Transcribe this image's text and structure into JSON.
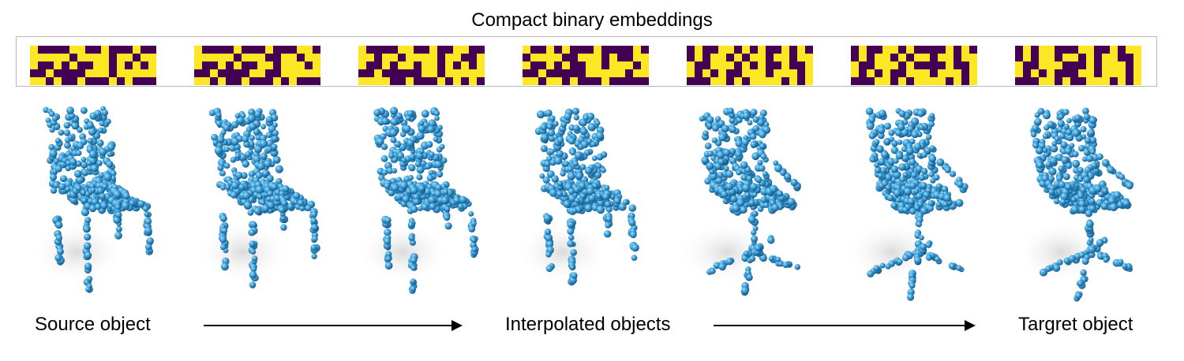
{
  "title": "Compact binary embeddings",
  "colors": {
    "bit_on": "#fde725",
    "bit_off": "#440154",
    "point_base": "#2a7fb8",
    "point_light": "#7fd0f5",
    "point_dark": "#0b3d66"
  },
  "embeddings": [
    {
      "rows": [
        "1000011001000100",
        "1111101111011011",
        "1001010011010101",
        "0010000111011111",
        "1101001000101000"
      ]
    },
    {
      "rows": [
        "1000010001000110",
        "1111101110011011",
        "1001010011011101",
        "0010000110011111",
        "1101001000101000"
      ]
    },
    {
      "rows": [
        "1000011001001100",
        "1101101111011001",
        "1001011011010101",
        "0010000011011111",
        "1111001000101010"
      ]
    },
    {
      "rows": [
        "1001010001000010",
        "0111100111010011",
        "1001010011011101",
        "0010000011111011",
        "1101101000100000"
      ]
    },
    {
      "rows": [
        "0100110101001010",
        "0101101011011011",
        "1001110101001001",
        "1010100111011101",
        "0001101011110101"
      ]
    },
    {
      "rows": [
        "0100110100001010",
        "0101101011011011",
        "1001110100001001",
        "1010100111011101",
        "0001101011110101"
      ]
    },
    {
      "rows": [
        "0101100011001011",
        "0101101101011001",
        "1001110001011101",
        "1010100011011101",
        "0001101001110101"
      ]
    }
  ],
  "objects": [
    {
      "name": "source-chair",
      "type": "chair"
    },
    {
      "name": "interp-chair-1",
      "type": "chair"
    },
    {
      "name": "interp-chair-2",
      "type": "chair"
    },
    {
      "name": "interp-chair-3",
      "type": "chair"
    },
    {
      "name": "interp-chair-4",
      "type": "office"
    },
    {
      "name": "interp-chair-5",
      "type": "office"
    },
    {
      "name": "target-chair",
      "type": "office"
    }
  ],
  "captions": {
    "source": "Source object",
    "interpolated": "Interpolated objects",
    "target": "Targret object"
  }
}
